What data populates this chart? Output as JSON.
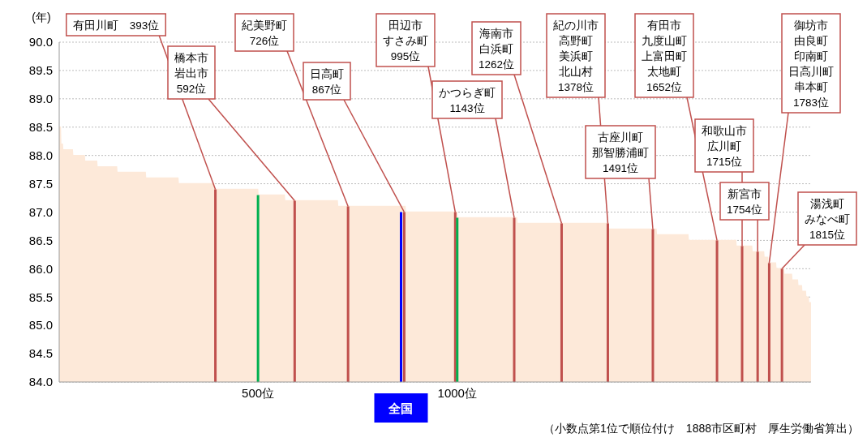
{
  "chart_data": {
    "type": "bar",
    "ylabel": "(年)",
    "xlim": [
      1,
      1888
    ],
    "xticks": [
      {
        "value": 500,
        "label": "500位"
      },
      {
        "value": 1000,
        "label": "1000位"
      }
    ],
    "ylim": [
      84,
      90
    ],
    "yticks": [
      {
        "value": 84,
        "label": "84.0"
      },
      {
        "value": 84.5,
        "label": "84.5"
      },
      {
        "value": 85,
        "label": "85.0"
      },
      {
        "value": 85.5,
        "label": "85.5"
      },
      {
        "value": 86,
        "label": "86.0"
      },
      {
        "value": 86.5,
        "label": "86.5"
      },
      {
        "value": 87,
        "label": "87.0"
      },
      {
        "value": 87.5,
        "label": "87.5"
      },
      {
        "value": 88,
        "label": "88.0"
      },
      {
        "value": 88.5,
        "label": "88.5"
      },
      {
        "value": 89,
        "label": "89.0"
      },
      {
        "value": 89.5,
        "label": "89.5"
      },
      {
        "value": 90,
        "label": "90.0"
      }
    ],
    "grid": "y",
    "legend": false,
    "series": [
      {
        "type": "area",
        "color": "#fde9d9",
        "x": [
          1,
          4,
          5,
          9,
          10,
          34,
          35,
          64,
          65,
          95,
          96,
          145,
          146,
          217,
          218,
          299,
          300,
          389,
          390,
          499,
          500,
          566,
          567,
          699,
          700,
          869,
          870,
          999,
          1000,
          1149,
          1150,
          1379,
          1380,
          1499,
          1500,
          1579,
          1580,
          1699,
          1700,
          1739,
          1740,
          1769,
          1770,
          1779,
          1780,
          1799,
          1800,
          1819,
          1820,
          1839,
          1840,
          1854,
          1855,
          1864,
          1865,
          1874,
          1875,
          1881,
          1882,
          1887,
          1888
        ],
        "values": [
          88.5,
          88.5,
          88.2,
          88.2,
          88.1,
          88.1,
          88.0,
          88.0,
          87.9,
          87.9,
          87.8,
          87.8,
          87.7,
          87.7,
          87.6,
          87.6,
          87.5,
          87.5,
          87.4,
          87.4,
          87.3,
          87.3,
          87.2,
          87.2,
          87.1,
          87.1,
          87.0,
          87.0,
          86.9,
          86.9,
          86.8,
          86.8,
          86.7,
          86.7,
          86.6,
          86.6,
          86.5,
          86.5,
          86.4,
          86.4,
          86.3,
          86.3,
          86.2,
          86.2,
          86.1,
          86.1,
          86.0,
          86.0,
          85.9,
          85.9,
          85.8,
          85.8,
          85.7,
          85.7,
          85.6,
          85.6,
          85.5,
          85.5,
          85.4,
          85.4,
          85.3
        ]
      },
      {
        "color": "#c0504d",
        "x": [
          393,
          592,
          726,
          867,
          995,
          1143,
          1262,
          1378,
          1491,
          1652,
          1715,
          1754,
          1783,
          1815
        ],
        "values": [
          87.4,
          87.2,
          87.1,
          87.0,
          87.0,
          86.9,
          86.8,
          86.8,
          86.7,
          86.5,
          86.4,
          86.3,
          86.1,
          86.0
        ]
      },
      {
        "color": "#00b050",
        "x": [
          500,
          1000
        ],
        "values": [
          87.3,
          86.9
        ]
      },
      {
        "name": "全国",
        "color": "#0000ff",
        "x": [
          859
        ],
        "values": [
          87.0
        ]
      }
    ],
    "annotations": [
      {
        "text": "有田川町　393位",
        "x": 393,
        "y": 87.4
      },
      {
        "text": "橋本市岩出市592位",
        "x": 592,
        "y": 87.2
      },
      {
        "text": "紀美野町726位",
        "x": 726,
        "y": 87.1
      },
      {
        "text": "日高町867位",
        "x": 867,
        "y": 87.0
      },
      {
        "text": "田辺市すさみ町995位",
        "x": 995,
        "y": 87.0
      },
      {
        "text": "かつらぎ町1143位",
        "x": 1143,
        "y": 86.9
      },
      {
        "text": "海南市白浜町1262位",
        "x": 1262,
        "y": 86.8
      },
      {
        "text": "紀の川市高野町美浜町北山村1378位",
        "x": 1378,
        "y": 86.8
      },
      {
        "text": "古座川町那智勝浦町1491位",
        "x": 1491,
        "y": 86.7
      },
      {
        "text": "有田市九度山町上富田町太地町1652位",
        "x": 1652,
        "y": 86.5
      },
      {
        "text": "和歌山市広川町1715位",
        "x": 1715,
        "y": 86.4
      },
      {
        "text": "新宮市1754位",
        "x": 1754,
        "y": 86.3
      },
      {
        "text": "御坊市由良町印南町日高川町串本町1783位",
        "x": 1783,
        "y": 86.1
      },
      {
        "text": "湯浅町みなべ町1815位",
        "x": 1815,
        "y": 86.0
      },
      "（小数点第1位で順位付け　1888市区町村　厚生労働省算出）"
    ]
  }
}
